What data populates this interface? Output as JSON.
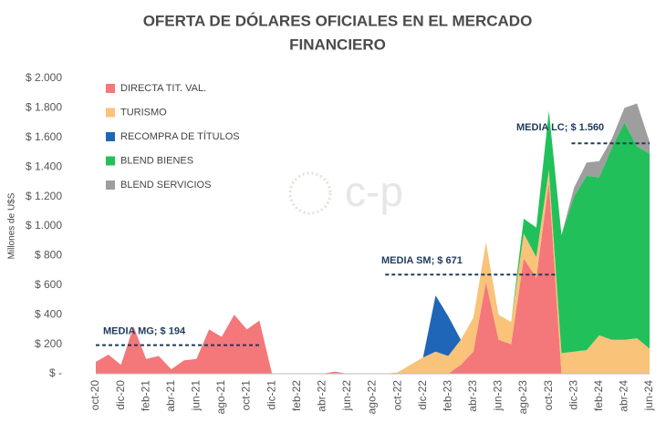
{
  "chart_data": {
    "type": "stacked_area",
    "title": [
      "OFERTA DE DÓLARES OFICIALES EN EL MERCADO",
      "FINANCIERO"
    ],
    "y_label": "Millones de U$S",
    "watermark": "c-p",
    "categories": [
      "oct-20",
      null,
      "dic-20",
      null,
      "feb-21",
      null,
      "abr-21",
      null,
      "jun-21",
      null,
      "ago-21",
      null,
      "oct-21",
      null,
      "dic-21",
      null,
      "feb-22",
      null,
      "abr-22",
      null,
      "jun-22",
      null,
      "ago-22",
      null,
      "oct-22",
      null,
      "dic-22",
      null,
      "feb-23",
      null,
      "abr-23",
      null,
      "jun-23",
      null,
      "ago-23",
      null,
      "oct-23",
      null,
      "dic-23",
      null,
      "feb-24",
      null,
      "abr-24",
      null,
      "jun-24"
    ],
    "series": [
      {
        "name": "DIRECTA TIT. VAL.",
        "color": "#f4777a",
        "values": [
          80,
          130,
          60,
          320,
          100,
          120,
          30,
          90,
          100,
          300,
          250,
          400,
          300,
          360,
          0,
          0,
          0,
          0,
          0,
          15,
          0,
          0,
          0,
          0,
          0,
          0,
          0,
          0,
          0,
          60,
          150,
          620,
          230,
          200,
          780,
          650,
          1300,
          0,
          0,
          0,
          0,
          0,
          0,
          0,
          0
        ]
      },
      {
        "name": "TURISMO",
        "color": "#f9c37a",
        "values": [
          0,
          0,
          0,
          0,
          0,
          0,
          0,
          0,
          0,
          0,
          0,
          0,
          0,
          0,
          0,
          0,
          0,
          0,
          0,
          0,
          0,
          0,
          0,
          0,
          10,
          60,
          110,
          150,
          120,
          170,
          230,
          270,
          170,
          150,
          170,
          140,
          80,
          140,
          150,
          160,
          260,
          230,
          230,
          240,
          170
        ]
      },
      {
        "name": "RECOMPRA DE TÍTULOS",
        "color": "#1f66b8",
        "values": [
          0,
          0,
          0,
          0,
          0,
          0,
          0,
          0,
          0,
          0,
          0,
          0,
          0,
          0,
          0,
          0,
          0,
          0,
          0,
          0,
          0,
          0,
          0,
          0,
          0,
          0,
          0,
          380,
          270,
          0,
          0,
          0,
          0,
          0,
          0,
          0,
          0,
          0,
          0,
          0,
          0,
          0,
          0,
          0,
          0
        ]
      },
      {
        "name": "BLEND BIENES",
        "color": "#22c05a",
        "values": [
          0,
          0,
          0,
          0,
          0,
          0,
          0,
          0,
          0,
          0,
          0,
          0,
          0,
          0,
          0,
          0,
          0,
          0,
          0,
          0,
          0,
          0,
          0,
          0,
          0,
          0,
          0,
          0,
          0,
          0,
          0,
          0,
          0,
          0,
          100,
          200,
          400,
          800,
          1050,
          1180,
          1070,
          1300,
          1470,
          1300,
          1320
        ]
      },
      {
        "name": "BLEND SERVICIOS",
        "color": "#9e9e9e",
        "values": [
          0,
          0,
          0,
          0,
          0,
          0,
          0,
          0,
          0,
          0,
          0,
          0,
          0,
          0,
          0,
          0,
          0,
          0,
          0,
          0,
          0,
          0,
          0,
          0,
          0,
          0,
          0,
          0,
          0,
          0,
          0,
          0,
          0,
          0,
          0,
          0,
          0,
          0,
          60,
          90,
          110,
          60,
          100,
          290,
          80
        ]
      }
    ],
    "ylim": [
      0,
      2000
    ],
    "yticks": [
      {
        "value": 0,
        "label": "$ -"
      },
      {
        "value": 200,
        "label": "$ 200"
      },
      {
        "value": 400,
        "label": "$ 400"
      },
      {
        "value": 600,
        "label": "$ 600"
      },
      {
        "value": 800,
        "label": "$ 800"
      },
      {
        "value": 1000,
        "label": "$ 1.000"
      },
      {
        "value": 1200,
        "label": "$ 1.200"
      },
      {
        "value": 1400,
        "label": "$ 1.400"
      },
      {
        "value": 1600,
        "label": "$ 1.600"
      },
      {
        "value": 1800,
        "label": "$ 1.800"
      },
      {
        "value": 2000,
        "label": "$ 2.000"
      }
    ],
    "annotations": [
      {
        "text": "MEDIA MG;  $ 194",
        "value": 194
      },
      {
        "text": "MEDIA SM;  $ 671",
        "value": 671
      },
      {
        "text": "MEDIA LC;  $ 1.560",
        "value": 1560
      }
    ]
  }
}
